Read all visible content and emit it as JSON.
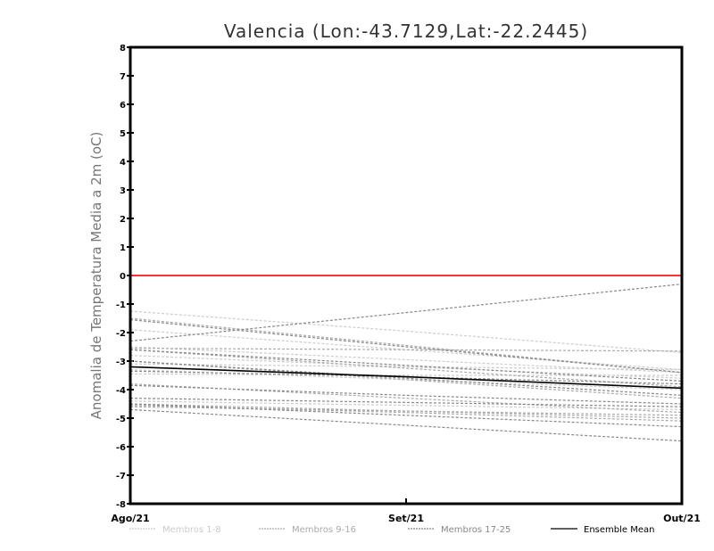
{
  "chart_data": {
    "type": "line",
    "title": "Valencia (Lon:-43.7129,Lat:-22.2445)",
    "xlabel": "",
    "ylabel": "Anomalia de Temperatura Media a 2m (oC)",
    "categories": [
      "Ago/21",
      "Set/21",
      "Out/21"
    ],
    "ylim": [
      -8,
      8
    ],
    "yticks": [
      8,
      7,
      6,
      5,
      4,
      3,
      2,
      1,
      0,
      -1,
      -2,
      -3,
      -4,
      -5,
      -6,
      -7,
      -8
    ],
    "grid": false,
    "reference_line": {
      "value": 0,
      "color": "#ff3333"
    },
    "groups": [
      {
        "name": "Membros 1-8",
        "color": "#cccccc",
        "dashed": true,
        "series": [
          [
            -1.25,
            -1.95,
            -2.7
          ],
          [
            -1.9,
            -2.6,
            -3.3
          ],
          [
            -2.5,
            -2.95,
            -3.4
          ],
          [
            -2.8,
            -3.2,
            -3.6
          ],
          [
            -3.1,
            -3.2,
            -3.3
          ],
          [
            -3.3,
            -3.65,
            -4.0
          ],
          [
            -3.45,
            -3.5,
            -3.5
          ],
          [
            -4.4,
            -4.55,
            -4.7
          ]
        ]
      },
      {
        "name": "Membros 9-16",
        "color": "#aaaaaa",
        "dashed": true,
        "series": [
          [
            -1.5,
            -2.45,
            -3.4
          ],
          [
            -2.6,
            -3.25,
            -3.9
          ],
          [
            -3.0,
            -3.65,
            -4.3
          ],
          [
            -3.8,
            -4.3,
            -4.8
          ],
          [
            -4.5,
            -4.75,
            -5.0
          ],
          [
            -4.55,
            -4.8,
            -5.1
          ],
          [
            -4.6,
            -4.75,
            -4.9
          ],
          [
            -2.55,
            -2.6,
            -2.65
          ]
        ]
      },
      {
        "name": "Membros 17-25",
        "color": "#888888",
        "dashed": true,
        "series": [
          [
            -2.3,
            -1.3,
            -0.3
          ],
          [
            -1.55,
            -2.5,
            -3.4
          ],
          [
            -3.0,
            -3.6,
            -4.2
          ],
          [
            -3.85,
            -4.2,
            -4.5
          ],
          [
            -4.3,
            -4.45,
            -4.6
          ],
          [
            -4.5,
            -4.9,
            -5.3
          ],
          [
            -4.7,
            -5.25,
            -5.8
          ],
          [
            -2.6,
            -3.15,
            -3.7
          ],
          [
            -3.35,
            -3.55,
            -3.8
          ]
        ]
      },
      {
        "name": "Ensemble Mean",
        "color": "#000000",
        "dashed": false,
        "series": [
          [
            -3.2,
            -3.55,
            -3.95
          ]
        ]
      }
    ],
    "legend_placement": "bottom"
  }
}
